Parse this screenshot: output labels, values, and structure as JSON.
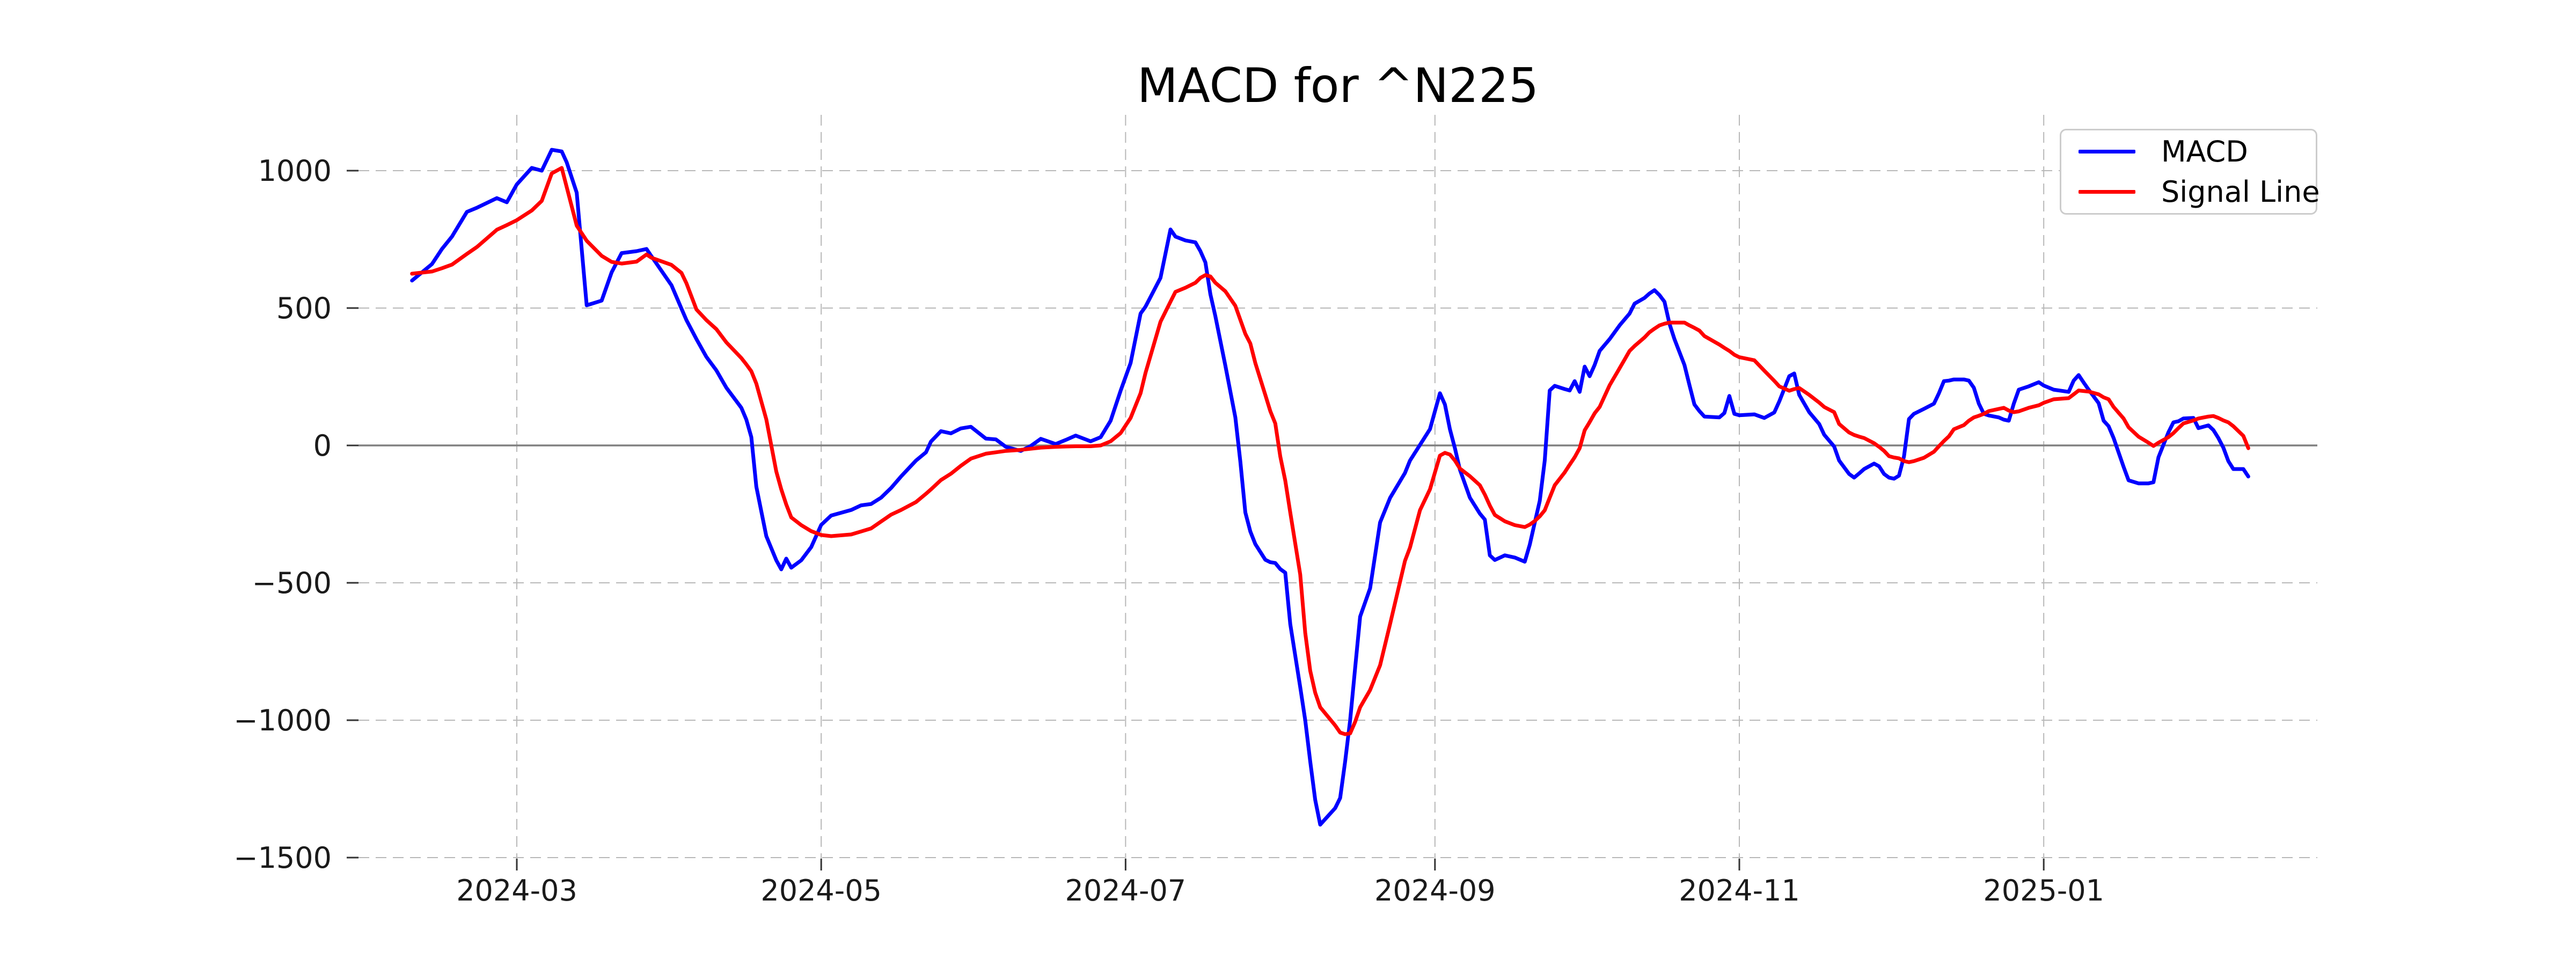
{
  "title": "MACD for ^N225",
  "legend": {
    "position": "upper right",
    "items": [
      {
        "label": "MACD",
        "color": "#0000ff"
      },
      {
        "label": "Signal Line",
        "color": "#ff0000"
      }
    ]
  },
  "chart_data": {
    "type": "line",
    "title": "MACD for ^N225",
    "xlabel": "",
    "ylabel": "",
    "grid": true,
    "grid_style": "dashed",
    "grid_color": "#b8b8b8",
    "zero_line": true,
    "zero_line_color": "#808080",
    "background": "#ffffff",
    "legend_position": "upper right",
    "x_ticks": [
      {
        "date": "2024-03-01",
        "label": "2024-03"
      },
      {
        "date": "2024-05-01",
        "label": "2024-05"
      },
      {
        "date": "2024-07-01",
        "label": "2024-07"
      },
      {
        "date": "2024-09-01",
        "label": "2024-09"
      },
      {
        "date": "2024-11-01",
        "label": "2024-11"
      },
      {
        "date": "2025-01-01",
        "label": "2025-01"
      }
    ],
    "y_ticks": [
      {
        "value": 1000,
        "label": "1000"
      },
      {
        "value": 500,
        "label": "500"
      },
      {
        "value": 0,
        "label": "0"
      },
      {
        "value": -500,
        "label": "−500"
      },
      {
        "value": -1000,
        "label": "−1000"
      },
      {
        "value": -1500,
        "label": "−1500"
      }
    ],
    "ylim": [
      -1504,
      1203
    ],
    "xlim": [
      "2024-01-28",
      "2025-02-25"
    ],
    "series": [
      {
        "name": "MACD",
        "color": "#0000ff"
      },
      {
        "name": "Signal Line",
        "color": "#ff0000"
      }
    ],
    "points": [
      [
        "2024-02-09",
        600,
        625
      ],
      [
        "2024-02-13",
        660,
        633
      ],
      [
        "2024-02-15",
        715,
        645
      ],
      [
        "2024-02-17",
        760,
        658
      ],
      [
        "2024-02-20",
        850,
        697
      ],
      [
        "2024-02-22",
        865,
        722
      ],
      [
        "2024-02-26",
        900,
        785
      ],
      [
        "2024-02-28",
        885,
        802
      ],
      [
        "2024-03-01",
        950,
        820
      ],
      [
        "2024-03-04",
        1010,
        855
      ],
      [
        "2024-03-06",
        1000,
        890
      ],
      [
        "2024-03-08",
        1076,
        990
      ],
      [
        "2024-03-10",
        1070,
        1010
      ],
      [
        "2024-03-11",
        1030,
        940
      ],
      [
        "2024-03-13",
        920,
        800
      ],
      [
        "2024-03-15",
        510,
        745
      ],
      [
        "2024-03-18",
        527,
        690
      ],
      [
        "2024-03-20",
        630,
        668
      ],
      [
        "2024-03-22",
        700,
        662
      ],
      [
        "2024-03-25",
        707,
        669
      ],
      [
        "2024-03-27",
        715,
        695
      ],
      [
        "2024-03-28",
        688,
        683
      ],
      [
        "2024-04-01",
        583,
        657
      ],
      [
        "2024-04-03",
        498,
        628
      ],
      [
        "2024-04-04",
        456,
        590
      ],
      [
        "2024-04-06",
        387,
        495
      ],
      [
        "2024-04-08",
        322,
        456
      ],
      [
        "2024-04-10",
        273,
        423
      ],
      [
        "2024-04-12",
        210,
        375
      ],
      [
        "2024-04-15",
        137,
        318
      ],
      [
        "2024-04-16",
        94,
        295
      ],
      [
        "2024-04-17",
        30,
        270
      ],
      [
        "2024-04-18",
        -150,
        225
      ],
      [
        "2024-04-20",
        -330,
        95
      ],
      [
        "2024-04-22",
        -418,
        -95
      ],
      [
        "2024-04-23",
        -451,
        -160
      ],
      [
        "2024-04-24",
        -412,
        -215
      ],
      [
        "2024-04-25",
        -445,
        -262
      ],
      [
        "2024-04-27",
        -418,
        -290
      ],
      [
        "2024-04-29",
        -370,
        -312
      ],
      [
        "2024-05-01",
        -289,
        -326
      ],
      [
        "2024-05-03",
        -255,
        -330
      ],
      [
        "2024-05-07",
        -235,
        -324
      ],
      [
        "2024-05-09",
        -218,
        -313
      ],
      [
        "2024-05-11",
        -213,
        -302
      ],
      [
        "2024-05-13",
        -190,
        -277
      ],
      [
        "2024-05-15",
        -155,
        -252
      ],
      [
        "2024-05-17",
        -113,
        -235
      ],
      [
        "2024-05-20",
        -55,
        -206
      ],
      [
        "2024-05-22",
        -25,
        -176
      ],
      [
        "2024-05-23",
        14,
        -160
      ],
      [
        "2024-05-25",
        52,
        -126
      ],
      [
        "2024-05-27",
        44,
        -103
      ],
      [
        "2024-05-29",
        62,
        -74
      ],
      [
        "2024-05-31",
        68,
        -48
      ],
      [
        "2024-06-03",
        25,
        -30
      ],
      [
        "2024-06-05",
        22,
        -25
      ],
      [
        "2024-06-07",
        -5,
        -20
      ],
      [
        "2024-06-10",
        -20,
        -16
      ],
      [
        "2024-06-12",
        -2,
        -12
      ],
      [
        "2024-06-14",
        24,
        -8
      ],
      [
        "2024-06-17",
        5,
        -5
      ],
      [
        "2024-06-19",
        20,
        -4
      ],
      [
        "2024-06-21",
        36,
        -3
      ],
      [
        "2024-06-24",
        15,
        -3
      ],
      [
        "2024-06-26",
        30,
        0
      ],
      [
        "2024-06-28",
        90,
        15
      ],
      [
        "2024-06-30",
        199,
        45
      ],
      [
        "2024-07-02",
        300,
        100
      ],
      [
        "2024-07-04",
        480,
        190
      ],
      [
        "2024-07-05",
        505,
        264
      ],
      [
        "2024-07-08",
        610,
        450
      ],
      [
        "2024-07-10",
        786,
        523
      ],
      [
        "2024-07-11",
        760,
        559
      ],
      [
        "2024-07-13",
        746,
        574
      ],
      [
        "2024-07-15",
        739,
        592
      ],
      [
        "2024-07-16",
        707,
        610
      ],
      [
        "2024-07-17",
        666,
        620
      ],
      [
        "2024-07-18",
        550,
        615
      ],
      [
        "2024-07-19",
        470,
        592
      ],
      [
        "2024-07-21",
        290,
        561
      ],
      [
        "2024-07-23",
        102,
        508
      ],
      [
        "2024-07-24",
        -59,
        457
      ],
      [
        "2024-07-25",
        -244,
        406
      ],
      [
        "2024-07-26",
        -313,
        371
      ],
      [
        "2024-07-27",
        -359,
        300
      ],
      [
        "2024-07-29",
        -416,
        184
      ],
      [
        "2024-07-30",
        -425,
        125
      ],
      [
        "2024-07-31",
        -428,
        80
      ],
      [
        "2024-08-01",
        -450,
        -40
      ],
      [
        "2024-08-02",
        -463,
        -128
      ],
      [
        "2024-08-03",
        -650,
        -244
      ],
      [
        "2024-08-05",
        -880,
        -470
      ],
      [
        "2024-08-06",
        -1000,
        -682
      ],
      [
        "2024-08-07",
        -1150,
        -820
      ],
      [
        "2024-08-08",
        -1290,
        -900
      ],
      [
        "2024-08-09",
        -1380,
        -953
      ],
      [
        "2024-08-12",
        -1320,
        -1019
      ],
      [
        "2024-08-13",
        -1283,
        -1045
      ],
      [
        "2024-08-14",
        -1150,
        -1051
      ],
      [
        "2024-08-15",
        -1000,
        -1048
      ],
      [
        "2024-08-16",
        -810,
        -1006
      ],
      [
        "2024-08-17",
        -623,
        -953
      ],
      [
        "2024-08-19",
        -520,
        -890
      ],
      [
        "2024-08-21",
        -280,
        -800
      ],
      [
        "2024-08-23",
        -191,
        -650
      ],
      [
        "2024-08-26",
        -100,
        -420
      ],
      [
        "2024-08-27",
        -55,
        -372
      ],
      [
        "2024-08-29",
        2,
        -236
      ],
      [
        "2024-08-31",
        59,
        -160
      ],
      [
        "2024-09-02",
        190,
        -37
      ],
      [
        "2024-09-03",
        149,
        -27
      ],
      [
        "2024-09-04",
        59,
        -33
      ],
      [
        "2024-09-05",
        -10,
        -55
      ],
      [
        "2024-09-06",
        -88,
        -84
      ],
      [
        "2024-09-08",
        -190,
        -112
      ],
      [
        "2024-09-10",
        -248,
        -145
      ],
      [
        "2024-09-11",
        -270,
        -179
      ],
      [
        "2024-09-12",
        -400,
        -219
      ],
      [
        "2024-09-13",
        -417,
        -253
      ],
      [
        "2024-09-15",
        -400,
        -276
      ],
      [
        "2024-09-17",
        -408,
        -290
      ],
      [
        "2024-09-19",
        -423,
        -297
      ],
      [
        "2024-09-20",
        -361,
        -288
      ],
      [
        "2024-09-21",
        -281,
        -275
      ],
      [
        "2024-09-22",
        -202,
        -258
      ],
      [
        "2024-09-23",
        -55,
        -236
      ],
      [
        "2024-09-24",
        200,
        -190
      ],
      [
        "2024-09-25",
        217,
        -145
      ],
      [
        "2024-09-27",
        205,
        -98
      ],
      [
        "2024-09-28",
        200,
        -70
      ],
      [
        "2024-09-29",
        234,
        -43
      ],
      [
        "2024-09-30",
        195,
        -10
      ],
      [
        "2024-10-01",
        287,
        55
      ],
      [
        "2024-10-02",
        252,
        85
      ],
      [
        "2024-10-03",
        293,
        117
      ],
      [
        "2024-10-04",
        344,
        140
      ],
      [
        "2024-10-06",
        387,
        219
      ],
      [
        "2024-10-08",
        437,
        281
      ],
      [
        "2024-10-10",
        480,
        344
      ],
      [
        "2024-10-11",
        516,
        362
      ],
      [
        "2024-10-13",
        537,
        393
      ],
      [
        "2024-10-14",
        553,
        412
      ],
      [
        "2024-10-15",
        565,
        425
      ],
      [
        "2024-10-16",
        547,
        437
      ],
      [
        "2024-10-17",
        523,
        443
      ],
      [
        "2024-10-18",
        443,
        447
      ],
      [
        "2024-10-19",
        387,
        447
      ],
      [
        "2024-10-21",
        293,
        447
      ],
      [
        "2024-10-22",
        220,
        437
      ],
      [
        "2024-10-23",
        149,
        428
      ],
      [
        "2024-10-24",
        125,
        418
      ],
      [
        "2024-10-25",
        105,
        398
      ],
      [
        "2024-10-28",
        102,
        367
      ],
      [
        "2024-10-29",
        118,
        355
      ],
      [
        "2024-10-30",
        180,
        344
      ],
      [
        "2024-10-31",
        115,
        330
      ],
      [
        "2024-11-01",
        110,
        321
      ],
      [
        "2024-11-04",
        113,
        310
      ],
      [
        "2024-11-06",
        100,
        272
      ],
      [
        "2024-11-08",
        120,
        235
      ],
      [
        "2024-11-09",
        160,
        215
      ],
      [
        "2024-11-11",
        252,
        199
      ],
      [
        "2024-11-12",
        262,
        205
      ],
      [
        "2024-11-13",
        184,
        209
      ],
      [
        "2024-11-15",
        121,
        184
      ],
      [
        "2024-11-17",
        78,
        156
      ],
      [
        "2024-11-18",
        39,
        140
      ],
      [
        "2024-11-20",
        -4,
        121
      ],
      [
        "2024-11-21",
        -55,
        78
      ],
      [
        "2024-11-23",
        -104,
        47
      ],
      [
        "2024-11-24",
        -117,
        38
      ],
      [
        "2024-11-25",
        -102,
        32
      ],
      [
        "2024-11-26",
        -86,
        27
      ],
      [
        "2024-11-28",
        -66,
        8
      ],
      [
        "2024-11-29",
        -76,
        -5
      ],
      [
        "2024-11-30",
        -104,
        -20
      ],
      [
        "2024-12-01",
        -117,
        -39
      ],
      [
        "2024-12-02",
        -121,
        -44
      ],
      [
        "2024-12-03",
        -110,
        -47
      ],
      [
        "2024-12-04",
        -40,
        -57
      ],
      [
        "2024-12-05",
        96,
        -61
      ],
      [
        "2024-12-06",
        115,
        -57
      ],
      [
        "2024-12-08",
        133,
        -45
      ],
      [
        "2024-12-10",
        152,
        -23
      ],
      [
        "2024-12-11",
        190,
        -3
      ],
      [
        "2024-12-12",
        234,
        16
      ],
      [
        "2024-12-13",
        236,
        33
      ],
      [
        "2024-12-14",
        240,
        59
      ],
      [
        "2024-12-16",
        240,
        74
      ],
      [
        "2024-12-17",
        236,
        90
      ],
      [
        "2024-12-18",
        210,
        102
      ],
      [
        "2024-12-19",
        152,
        108
      ],
      [
        "2024-12-20",
        115,
        115
      ],
      [
        "2024-12-21",
        109,
        125
      ],
      [
        "2024-12-23",
        102,
        133
      ],
      [
        "2024-12-24",
        94,
        137
      ],
      [
        "2024-12-25",
        90,
        127
      ],
      [
        "2024-12-26",
        152,
        121
      ],
      [
        "2024-12-27",
        203,
        124
      ],
      [
        "2024-12-29",
        215,
        137
      ],
      [
        "2024-12-31",
        230,
        146
      ],
      [
        "2025-01-01",
        218,
        155
      ],
      [
        "2025-01-03",
        203,
        168
      ],
      [
        "2025-01-06",
        195,
        172
      ],
      [
        "2025-01-07",
        236,
        186
      ],
      [
        "2025-01-08",
        256,
        200
      ],
      [
        "2025-01-09",
        229,
        198
      ],
      [
        "2025-01-10",
        203,
        196
      ],
      [
        "2025-01-12",
        154,
        186
      ],
      [
        "2025-01-13",
        90,
        175
      ],
      [
        "2025-01-14",
        70,
        168
      ],
      [
        "2025-01-15",
        27,
        140
      ],
      [
        "2025-01-17",
        -78,
        98
      ],
      [
        "2025-01-18",
        -127,
        66
      ],
      [
        "2025-01-20",
        -138,
        32
      ],
      [
        "2025-01-22",
        -138,
        10
      ],
      [
        "2025-01-23",
        -134,
        -2
      ],
      [
        "2025-01-24",
        -43,
        10
      ],
      [
        "2025-01-26",
        48,
        30
      ],
      [
        "2025-01-27",
        84,
        45
      ],
      [
        "2025-01-28",
        88,
        63
      ],
      [
        "2025-01-29",
        98,
        80
      ],
      [
        "2025-01-31",
        100,
        91
      ],
      [
        "2025-02-01",
        63,
        98
      ],
      [
        "2025-02-03",
        73,
        105
      ],
      [
        "2025-02-04",
        56,
        107
      ],
      [
        "2025-02-05",
        27,
        100
      ],
      [
        "2025-02-06",
        -8,
        91
      ],
      [
        "2025-02-07",
        -57,
        84
      ],
      [
        "2025-02-08",
        -86,
        70
      ],
      [
        "2025-02-10",
        -86,
        35
      ],
      [
        "2025-02-11",
        -113,
        -10
      ]
    ]
  }
}
